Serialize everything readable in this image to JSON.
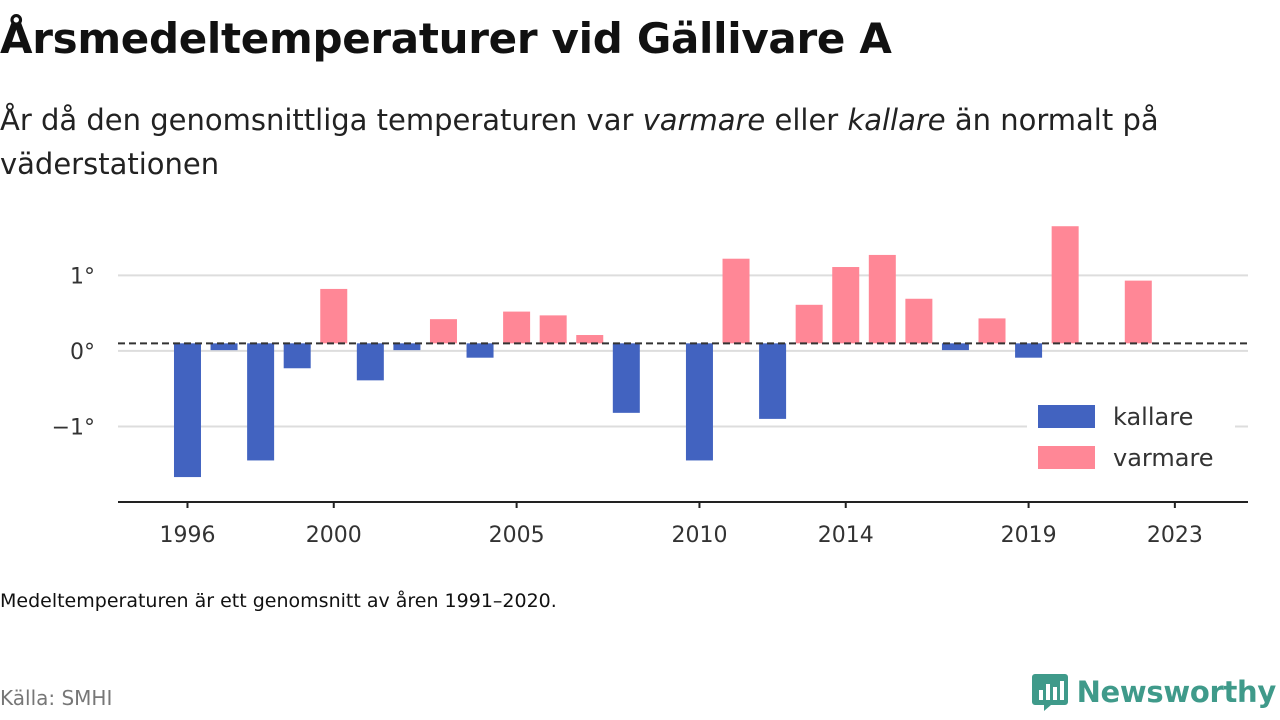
{
  "header": {
    "title": "Årsmedeltemperaturer vid Gällivare A",
    "subtitle_part1": "År då den genomsnittliga temperaturen var ",
    "subtitle_warmer": "varmare",
    "subtitle_part2": " eller ",
    "subtitle_colder": "kallare",
    "subtitle_part3": " än normalt på väderstationen"
  },
  "footer": {
    "note": "Medeltemperaturen är ett genomsnitt av åren 1991–2020.",
    "source": "Källa: SMHI",
    "brand": "Newsworthy",
    "brand_icon": "newsworthy-logo-icon"
  },
  "colors": {
    "kallare": "#4263c0",
    "varmare": "#ff8796",
    "brand": "#3f9a8a"
  },
  "chart_data": {
    "type": "bar",
    "x": [
      1996,
      1997,
      1998,
      1999,
      2000,
      2001,
      2002,
      2003,
      2004,
      2005,
      2006,
      2007,
      2008,
      2009,
      2010,
      2011,
      2012,
      2013,
      2014,
      2015,
      2016,
      2017,
      2018,
      2019,
      2020,
      2021,
      2022
    ],
    "values": [
      -1.77,
      -0.09,
      -1.55,
      -0.33,
      0.72,
      -0.49,
      -0.09,
      0.32,
      -0.19,
      0.42,
      0.37,
      0.11,
      -0.92,
      null,
      -1.55,
      1.12,
      -1.0,
      0.51,
      1.01,
      1.17,
      0.59,
      -0.09,
      0.33,
      -0.19,
      1.55,
      null,
      0.83
    ],
    "series": [
      {
        "name": "kallare",
        "rule": "value < 0"
      },
      {
        "name": "varmare",
        "rule": "value > 0"
      }
    ],
    "x_ticks": [
      "1996",
      "2000",
      "2005",
      "2010",
      "2014",
      "2019",
      "2023"
    ],
    "y_ticks": [
      "−1°",
      "0°",
      "1°"
    ],
    "y_tick_values": [
      -1,
      0,
      1
    ],
    "ylim": [
      -2.0,
      1.6
    ],
    "xlim": [
      1994.1,
      2025.0
    ],
    "baseline_offset": 0.1,
    "legend": [
      "kallare",
      "varmare"
    ],
    "legend_position": "bottom-right",
    "grid": true
  }
}
